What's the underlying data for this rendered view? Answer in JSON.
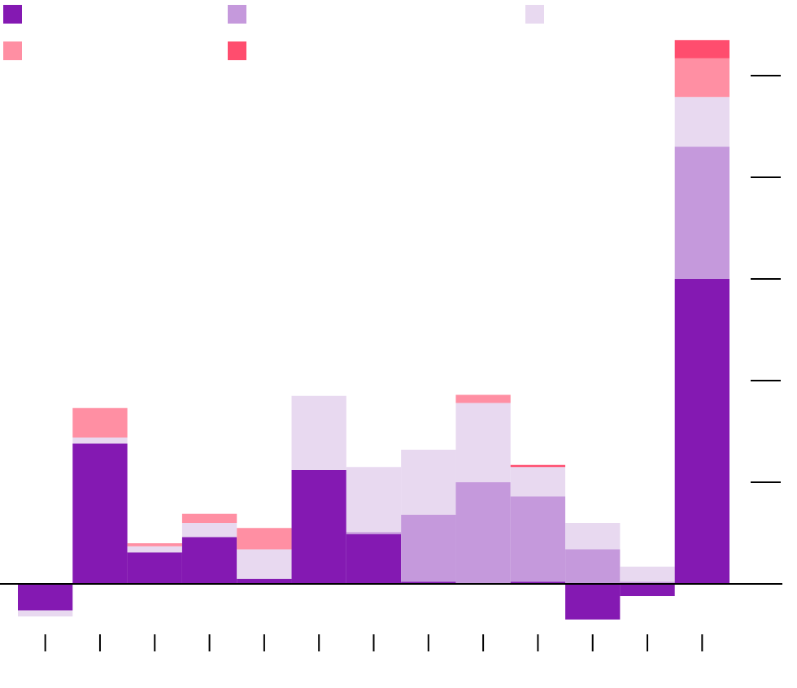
{
  "chart_data": {
    "type": "stacked_bar",
    "categories": [
      null,
      null,
      null,
      null,
      null,
      null,
      null,
      null,
      null,
      null,
      null,
      null,
      null
    ],
    "series": [
      {
        "color": "#8419b2",
        "values": [
          -0.26,
          1.38,
          0.31,
          0.46,
          0.05,
          1.12,
          0.49,
          0.02,
          0,
          0.02,
          -0.35,
          -0.12,
          3.0
        ]
      },
      {
        "color": "#c599dc",
        "values": [
          0,
          0,
          0,
          0,
          0,
          0,
          0.02,
          0.66,
          1.0,
          0.84,
          0.34,
          0.02,
          1.3
        ]
      },
      {
        "color": "#e8d9f0",
        "values": [
          -0.06,
          0.06,
          0.06,
          0.14,
          0.29,
          0.73,
          0.64,
          0.64,
          0.78,
          0.29,
          0.26,
          0.15,
          0.49
        ]
      },
      {
        "color": "#ff8fa3",
        "values": [
          0,
          0.29,
          0.03,
          0.09,
          0.21,
          0,
          0,
          0,
          0.08,
          0,
          0,
          0,
          0.38
        ]
      },
      {
        "color": "#ff4d6e",
        "values": [
          0,
          0,
          0,
          0,
          0,
          0,
          0,
          0,
          0,
          0.02,
          0,
          0,
          0.18
        ]
      }
    ],
    "ylim": [
      -0.6,
      5.4
    ],
    "yticks": [
      0,
      1,
      2,
      3,
      4,
      5
    ]
  }
}
